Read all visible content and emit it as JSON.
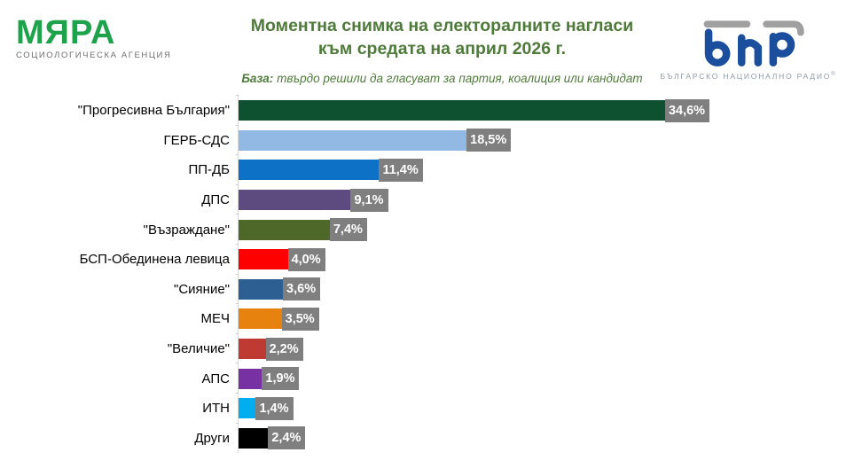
{
  "header": {
    "myara": {
      "wordmark": "МЯРА",
      "tagline": "СОЦИОЛОГИЧЕСКА АГЕНЦИЯ",
      "brand_green": "#1ea24b",
      "tagline_gray": "#6e6e6e"
    },
    "title_line1": "Моментна снимка на електоралните нагласи",
    "title_line2": "към средата на април 2026 г.",
    "title_color": "#4e7a3a",
    "base_label": "База:",
    "base_text": "твърдо решили да гласуват за партия, коалиция или кандидат",
    "bnr": {
      "wordmark": "бнр",
      "tagline": "БЪЛГАРСКО НАЦИОНАЛНО РАДИО",
      "reg_mark": "®",
      "brand_blue": "#1c4e9e",
      "accent_gray": "#a0a0a0"
    }
  },
  "chart_data": {
    "type": "bar",
    "orientation": "horizontal",
    "title": "Моментна снимка на електоралните нагласи към средата на април 2026 г.",
    "subtitle": "База: твърдо решили да гласуват за партия, коалиция или кандидат",
    "xlabel": "",
    "ylabel": "",
    "xlim": [
      0,
      36
    ],
    "grid": false,
    "legend": false,
    "decimal_separator": ",",
    "categories": [
      "\"Прогресивна България\"",
      "ГЕРБ-СДС",
      "ПП-ДБ",
      "ДПС",
      "\"Възраждане\"",
      "БСП-Обединена левица",
      "\"Сияние\"",
      "МЕЧ",
      "\"Величие\"",
      "АПС",
      "ИТН",
      "Други"
    ],
    "values": [
      34.6,
      18.5,
      11.4,
      9.1,
      7.4,
      4.0,
      3.6,
      3.5,
      2.2,
      1.9,
      1.4,
      2.4
    ],
    "value_labels": [
      "34,6%",
      "18,5%",
      "11,4%",
      "9,1%",
      "7,4%",
      "4,0%",
      "3,6%",
      "3,5%",
      "2,2%",
      "1,9%",
      "1,4%",
      "2,4%"
    ],
    "bar_colors": [
      "#0e5130",
      "#92b9e4",
      "#0d72c6",
      "#5d4a7e",
      "#4e682a",
      "#fe0000",
      "#2e5f93",
      "#e8820e",
      "#c03a34",
      "#7831a2",
      "#00aeef",
      "#000000"
    ],
    "value_box_bg": "#7f7f7f",
    "value_box_text_color": "#ffffff",
    "axis_line_color": "#d9d9d9"
  }
}
